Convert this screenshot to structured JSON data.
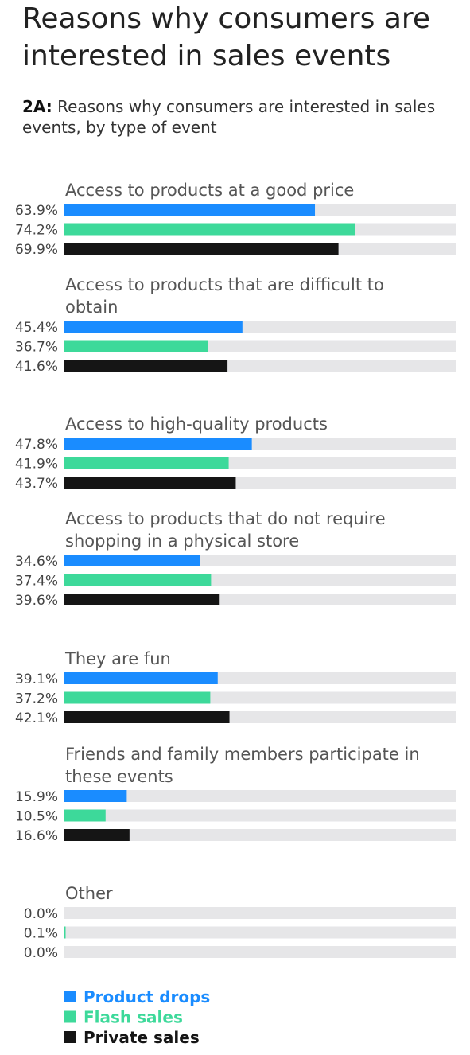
{
  "title": "Reasons why consumers are interested in sales events",
  "subtitle": {
    "prefix": "2A:",
    "text": "Reasons why consumers are interested in sales events, by type of event"
  },
  "colors": {
    "track": "#e6e6e8",
    "category_label": "#555555",
    "value_label": "#444444"
  },
  "chart_data": {
    "type": "bar",
    "orientation": "horizontal",
    "xlim": [
      0,
      100
    ],
    "unit": "%",
    "categories": [
      [
        "Access to products at a good price"
      ],
      [
        "Access to products that are difficult to",
        "obtain"
      ],
      [
        "Access to high-quality products"
      ],
      [
        "Access to products that do not require",
        "shopping in a physical store"
      ],
      [
        "They are fun"
      ],
      [
        "Friends and family members participate in",
        "these events"
      ],
      [
        "Other"
      ]
    ],
    "series": [
      {
        "name": "Product drops",
        "color": "#1a8cff",
        "values": [
          63.9,
          45.4,
          47.8,
          34.6,
          39.1,
          15.9,
          0.0
        ],
        "labels": [
          "63.9%",
          "45.4%",
          "47.8%",
          "34.6%",
          "39.1%",
          "15.9%",
          "0.0%"
        ]
      },
      {
        "name": "Flash sales",
        "color": "#3dd99a",
        "values": [
          74.2,
          36.7,
          41.9,
          37.4,
          37.2,
          10.5,
          0.1
        ],
        "labels": [
          "74.2%",
          "36.7%",
          "41.9%",
          "37.4%",
          "37.2%",
          "10.5%",
          "0.1%"
        ]
      },
      {
        "name": "Private sales",
        "color": "#151515",
        "values": [
          69.9,
          41.6,
          43.7,
          39.6,
          42.1,
          16.6,
          0.0
        ],
        "labels": [
          "69.9%",
          "41.6%",
          "43.7%",
          "39.6%",
          "42.1%",
          "16.6%",
          "0.0%"
        ]
      }
    ],
    "legend_position": "bottom-left",
    "grid": false
  }
}
